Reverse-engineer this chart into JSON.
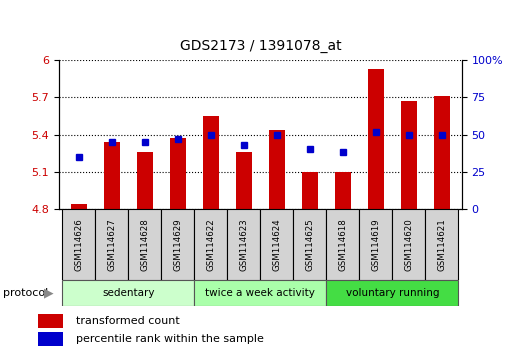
{
  "title": "GDS2173 / 1391078_at",
  "samples": [
    "GSM114626",
    "GSM114627",
    "GSM114628",
    "GSM114629",
    "GSM114622",
    "GSM114623",
    "GSM114624",
    "GSM114625",
    "GSM114618",
    "GSM114619",
    "GSM114620",
    "GSM114621"
  ],
  "bar_values": [
    4.84,
    5.34,
    5.26,
    5.37,
    5.55,
    5.26,
    5.44,
    5.1,
    5.1,
    5.93,
    5.67,
    5.71
  ],
  "percentile_values": [
    35,
    45,
    45,
    47,
    50,
    43,
    50,
    40,
    38,
    52,
    50,
    50
  ],
  "bar_color": "#cc0000",
  "percentile_color": "#0000cc",
  "ylim_left": [
    4.8,
    6.0
  ],
  "ylim_right": [
    0,
    100
  ],
  "yticks_left": [
    4.8,
    5.1,
    5.4,
    5.7,
    6.0
  ],
  "ytick_labels_left": [
    "4.8",
    "5.1",
    "5.4",
    "5.7",
    "6"
  ],
  "yticks_right": [
    0,
    25,
    50,
    75,
    100
  ],
  "ytick_labels_right": [
    "0",
    "25",
    "50",
    "75",
    "100%"
  ],
  "groups": [
    {
      "label": "sedentary",
      "start": 0,
      "end": 4,
      "color": "#ccffcc"
    },
    {
      "label": "twice a week activity",
      "start": 4,
      "end": 8,
      "color": "#aaffaa"
    },
    {
      "label": "voluntary running",
      "start": 8,
      "end": 12,
      "color": "#44dd44"
    }
  ],
  "protocol_label": "protocol",
  "legend_items": [
    {
      "label": "transformed count",
      "color": "#cc0000"
    },
    {
      "label": "percentile rank within the sample",
      "color": "#0000cc"
    }
  ],
  "bar_bottom": 4.8,
  "sample_box_color": "#d3d3d3"
}
